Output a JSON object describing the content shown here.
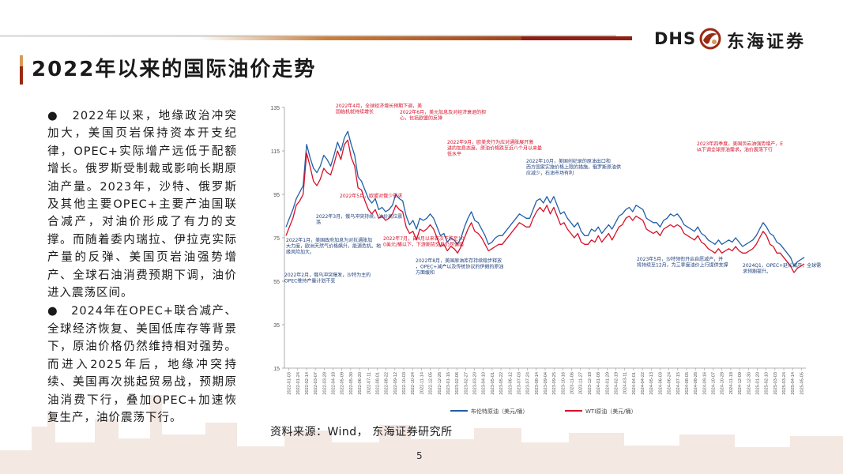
{
  "header": {
    "logo_latin": "DHS",
    "logo_cn": "东海证券"
  },
  "title": "2022年以来的国际油价走势",
  "bullets": [
    "●　2022年以来，地缘政治冲突加大，美国页岩保持资本开支纪律，OPEC+实际增产远低于配额增长。俄罗斯受制裁或影响长期原油产量。2023年，沙特、俄罗斯及其他主要OPEC+主要产油国联合减产，对油价形成了有力的支撑。而随着委内瑞拉、伊拉克实际产量的反弹、美国页岩油强势增产、全球石油消费预期下调，油价进入震荡区间。",
    "●　2024年在OPEC+联合减产、全球经济恢复、美国低库存等背景下，原油价格仍然维持相对强势。而进入2025年后，地缘冲突持续、美国再次挑起贸易战，预期原油消费下行，叠加OPEC+加速恢复生产，油价震荡下行。"
  ],
  "source": "资料来源：Wind， 东海证券研究所",
  "page_number": "5",
  "chart_data": {
    "type": "line",
    "ylim": [
      15,
      135
    ],
    "yticks": [
      15,
      35,
      55,
      75,
      95,
      115,
      135
    ],
    "x_tick_labels": [
      "2022-01-03",
      "2022-01-24",
      "2022-02-14",
      "2022-03-07",
      "2022-03-28",
      "2022-04-18",
      "2022-05-09",
      "2022-05-30",
      "2022-06-20",
      "2022-07-11",
      "2022-08-01",
      "2022-08-22",
      "2022-09-12",
      "2022-10-03",
      "2022-10-24",
      "2022-11-14",
      "2022-12-05",
      "2022-12-26",
      "2023-01-16",
      "2023-02-06",
      "2023-02-27",
      "2023-03-20",
      "2023-04-10",
      "2023-05-01",
      "2023-05-22",
      "2023-06-12",
      "2023-07-03",
      "2023-07-24",
      "2023-08-14",
      "2023-09-04",
      "2023-09-25",
      "2023-10-16",
      "2023-11-06",
      "2023-11-27",
      "2023-12-18",
      "2024-01-08",
      "2024-01-29",
      "2024-02-19",
      "2024-03-11",
      "2024-04-01",
      "2024-04-22",
      "2024-05-13",
      "2024-06-03",
      "2024-06-24",
      "2024-07-15",
      "2024-08-05",
      "2024-08-26",
      "2024-09-16",
      "2024-10-07",
      "2024-10-28",
      "2024-11-18",
      "2024-12-09",
      "2024-12-30",
      "2025-01-20",
      "2025-02-10",
      "2025-03-03",
      "2025-03-24",
      "2025-04-14",
      "2025-05-05"
    ],
    "series": [
      {
        "name": "布伦特原油（美元/桶）",
        "color": "#1f5fa8",
        "values": [
          80,
          84,
          88,
          93,
          96,
          99,
          118,
          112,
          107,
          105,
          108,
          113,
          111,
          108,
          113,
          119,
          115,
          121,
          124,
          118,
          113,
          103,
          101,
          97,
          93,
          91,
          93,
          88,
          89,
          87,
          88,
          90,
          95,
          93,
          92,
          85,
          81,
          83,
          79,
          84,
          83,
          84,
          86,
          84,
          80,
          76,
          77,
          73,
          75,
          74,
          72,
          75,
          80,
          84,
          87,
          83,
          82,
          79,
          76,
          72,
          73,
          75,
          76,
          76,
          78,
          80,
          82,
          84,
          86,
          85,
          84,
          84,
          88,
          92,
          93,
          91,
          94,
          91,
          94,
          90,
          86,
          87,
          84,
          82,
          80,
          82,
          78,
          76,
          76,
          79,
          78,
          80,
          77,
          79,
          81,
          79,
          82,
          85,
          86,
          88,
          89,
          87,
          90,
          89,
          88,
          84,
          83,
          82,
          82,
          80,
          83,
          84,
          86,
          85,
          86,
          84,
          81,
          80,
          79,
          78,
          80,
          77,
          76,
          74,
          73,
          72,
          74,
          72,
          73,
          74,
          73,
          75,
          73,
          71,
          72,
          73,
          74,
          76,
          79,
          82,
          80,
          77,
          76,
          73,
          72,
          70,
          68,
          66,
          62,
          64,
          65,
          66
        ]
      },
      {
        "name": "WTI原油（美元/桶）",
        "color": "#d6102a",
        "values": [
          76,
          80,
          84,
          90,
          92,
          95,
          114,
          108,
          101,
          99,
          102,
          107,
          105,
          104,
          109,
          115,
          111,
          118,
          120,
          112,
          108,
          98,
          97,
          92,
          88,
          86,
          88,
          84,
          85,
          83,
          84,
          86,
          90,
          88,
          87,
          80,
          77,
          78,
          74,
          79,
          78,
          79,
          81,
          79,
          75,
          71,
          72,
          69,
          71,
          70,
          68,
          71,
          75,
          79,
          82,
          78,
          77,
          75,
          72,
          69,
          70,
          71,
          72,
          72,
          74,
          76,
          78,
          80,
          82,
          81,
          80,
          80,
          84,
          87,
          89,
          87,
          90,
          86,
          89,
          85,
          81,
          82,
          79,
          77,
          75,
          77,
          73,
          72,
          72,
          74,
          73,
          76,
          73,
          75,
          77,
          74,
          77,
          80,
          81,
          84,
          85,
          83,
          85,
          84,
          83,
          79,
          78,
          77,
          78,
          76,
          79,
          80,
          81,
          80,
          81,
          80,
          77,
          76,
          75,
          74,
          76,
          73,
          72,
          70,
          69,
          68,
          70,
          68,
          69,
          70,
          69,
          71,
          69,
          68,
          68,
          69,
          70,
          72,
          75,
          78,
          76,
          72,
          71,
          68,
          68,
          66,
          64,
          62,
          59,
          61,
          62,
          63
        ]
      }
    ],
    "annotations": [
      {
        "text": "2022年1月，美国政府加息为对抗通胀加大力度，欧洲天然气价格飙升，能源危机。地缘风险加大。",
        "color": "#1f3f7a"
      },
      {
        "text": "2022年3月，俄乌冲突持续，油价高位震荡",
        "color": "#1f3f7a"
      },
      {
        "text": "2022年2月，俄乌冲突爆发，沙特为主的OPEC维持产量计划不变",
        "color": "#1f3f7a"
      },
      {
        "text": "2022年4月，全球经济增长预期下调，美国临机就持续增长",
        "color": "#d6102a"
      },
      {
        "text": "2022年5月，欧盟对俄少需求",
        "color": "#d6102a"
      },
      {
        "text": "2022年6月，美元加息及对经济衰退的担心，包括欧盟的反弹",
        "color": "#d6102a"
      },
      {
        "text": "2022年7月，自4月以来首次下跌至100美元/桶以下，下游期货交易仍然偏弱",
        "color": "#d6102a"
      },
      {
        "text": "2022年8月，美国原油库存持续稳步释放，OPEC+减产以及传统协议的伊朗的原油方面缓和",
        "color": "#1f3f7a"
      },
      {
        "text": "2022年9月，欧美央行为应对通胀展开激进的加息态度，原油价格跌至近八个月以来最低水平",
        "color": "#d6102a"
      },
      {
        "text": "2022年10月，美国创纪录的原油出口和西方国家实施价格上限的措施，俄罗斯原油供应减少，石油市场有利",
        "color": "#1f3f7a"
      },
      {
        "text": "2023年5月，沙特领衔开启自愿减产，并将持续至12月，为三季度油价上行提供支撑",
        "color": "#1f3f7a"
      },
      {
        "text": "2023年四季度，美国页岩油强势增产，EIA下调全球原油需求，油价震荡下行",
        "color": "#d6102a"
      },
      {
        "text": "2024Q1，OPEC+延长减产，全球需求预期提升。",
        "color": "#1f3f7a"
      }
    ]
  }
}
